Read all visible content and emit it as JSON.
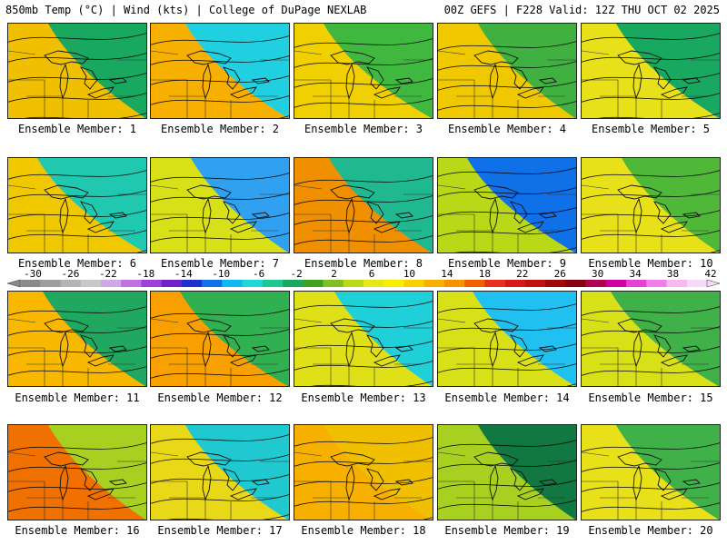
{
  "header": {
    "left": "850mb Temp (°C) | Wind (kts) | College of DuPage NEXLAB",
    "right": "00Z GEFS | F228 Valid: 12Z THU OCT 02 2025"
  },
  "colorbar": {
    "labels": [
      "-30",
      "-26",
      "-22",
      "-18",
      "-14",
      "-10",
      "-6",
      "-2",
      "2",
      "6",
      "10",
      "14",
      "18",
      "22",
      "26",
      "30",
      "34",
      "38",
      "42"
    ],
    "colors": [
      "#8a8a8a",
      "#9e9e9e",
      "#b4b4b4",
      "#c8c8c8",
      "#d0a8e8",
      "#c070e0",
      "#a040d8",
      "#7020c8",
      "#2030d0",
      "#1070e8",
      "#10b8f0",
      "#20d8d8",
      "#20c890",
      "#18a860",
      "#40a020",
      "#80c020",
      "#b8d818",
      "#e8e818",
      "#f8f000",
      "#f8d000",
      "#f8b000",
      "#f89000",
      "#f06000",
      "#e83020",
      "#d81818",
      "#c01010",
      "#a00808",
      "#880010",
      "#b00050",
      "#d000a0",
      "#e840d0",
      "#f080e8",
      "#f8b8f0",
      "#f8d8f8"
    ]
  },
  "members": [
    {
      "label": "Ensemble Member: 1"
    },
    {
      "label": "Ensemble Member: 2"
    },
    {
      "label": "Ensemble Member: 3"
    },
    {
      "label": "Ensemble Member: 4"
    },
    {
      "label": "Ensemble Member: 5"
    },
    {
      "label": "Ensemble Member: 6"
    },
    {
      "label": "Ensemble Member: 7"
    },
    {
      "label": "Ensemble Member: 8"
    },
    {
      "label": "Ensemble Member: 9"
    },
    {
      "label": "Ensemble Member: 10"
    },
    {
      "label": "Ensemble Member: 11"
    },
    {
      "label": "Ensemble Member: 12"
    },
    {
      "label": "Ensemble Member: 13"
    },
    {
      "label": "Ensemble Member: 14"
    },
    {
      "label": "Ensemble Member: 15"
    },
    {
      "label": "Ensemble Member: 16"
    },
    {
      "label": "Ensemble Member: 17"
    },
    {
      "label": "Ensemble Member: 18"
    },
    {
      "label": "Ensemble Member: 19"
    },
    {
      "label": "Ensemble Member: 20"
    }
  ]
}
